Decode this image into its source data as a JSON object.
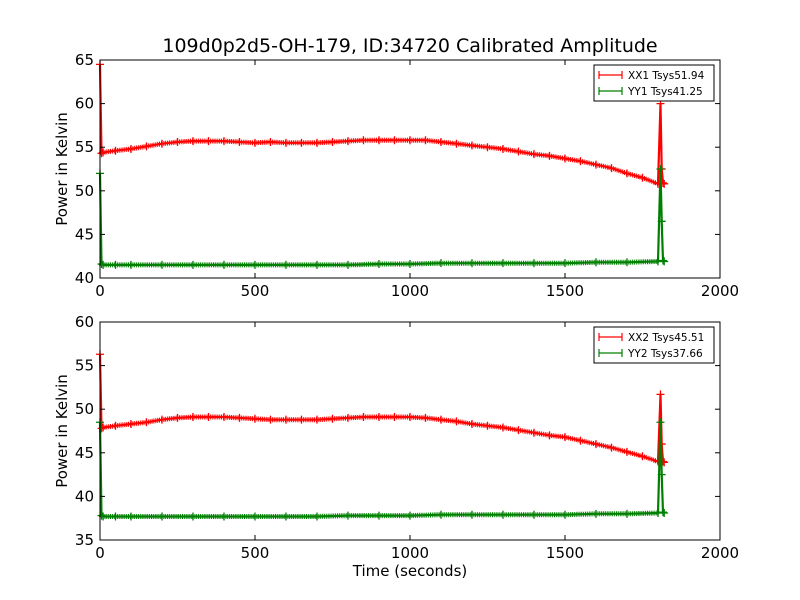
{
  "title": "109d0p2d5-OH-179, ID:34720 Calibrated Amplitude",
  "chart_data": [
    {
      "type": "line",
      "xlabel": "",
      "ylabel": "Power in Kelvin",
      "xlim": [
        0,
        2000
      ],
      "ylim": [
        40,
        65
      ],
      "xticks": [
        0,
        500,
        1000,
        1500,
        2000
      ],
      "yticks": [
        40,
        45,
        50,
        55,
        60,
        65
      ],
      "grid": false,
      "legend_position": "top-right",
      "series": [
        {
          "name": "XX1 Tsys51.94",
          "color": "#ff0000",
          "x": [
            0,
            5,
            10,
            50,
            100,
            150,
            200,
            250,
            300,
            350,
            400,
            450,
            500,
            550,
            600,
            650,
            700,
            750,
            800,
            850,
            900,
            950,
            1000,
            1050,
            1100,
            1150,
            1200,
            1250,
            1300,
            1350,
            1400,
            1450,
            1500,
            1550,
            1600,
            1650,
            1700,
            1750,
            1800,
            1808,
            1812,
            1816,
            1820
          ],
          "y": [
            64.5,
            54.3,
            54.4,
            54.6,
            54.8,
            55.1,
            55.4,
            55.6,
            55.7,
            55.7,
            55.7,
            55.6,
            55.5,
            55.6,
            55.5,
            55.5,
            55.5,
            55.6,
            55.7,
            55.8,
            55.8,
            55.8,
            55.8,
            55.8,
            55.6,
            55.4,
            55.2,
            55.0,
            54.8,
            54.5,
            54.2,
            54.0,
            53.7,
            53.4,
            53.0,
            52.6,
            52.0,
            51.5,
            50.8,
            60.0,
            52.5,
            50.9,
            50.8
          ]
        },
        {
          "name": "YY1 Tsys41.25",
          "color": "#008000",
          "x": [
            0,
            5,
            10,
            50,
            100,
            200,
            300,
            400,
            500,
            600,
            700,
            800,
            900,
            1000,
            1100,
            1200,
            1300,
            1400,
            1500,
            1600,
            1700,
            1800,
            1808,
            1812,
            1816,
            1820
          ],
          "y": [
            52.0,
            41.6,
            41.5,
            41.5,
            41.5,
            41.5,
            41.5,
            41.5,
            41.5,
            41.5,
            41.5,
            41.5,
            41.6,
            41.6,
            41.7,
            41.7,
            41.7,
            41.7,
            41.7,
            41.8,
            41.8,
            41.9,
            52.5,
            46.5,
            42.0,
            41.9
          ]
        }
      ]
    },
    {
      "type": "line",
      "xlabel": "Time (seconds)",
      "ylabel": "Power in Kelvin",
      "xlim": [
        0,
        2000
      ],
      "ylim": [
        35,
        60
      ],
      "xticks": [
        0,
        500,
        1000,
        1500,
        2000
      ],
      "yticks": [
        35,
        40,
        45,
        50,
        55,
        60
      ],
      "grid": false,
      "legend_position": "top-right",
      "series": [
        {
          "name": "XX2 Tsys45.51",
          "color": "#ff0000",
          "x": [
            0,
            5,
            10,
            50,
            100,
            150,
            200,
            250,
            300,
            350,
            400,
            450,
            500,
            550,
            600,
            650,
            700,
            750,
            800,
            850,
            900,
            950,
            1000,
            1050,
            1100,
            1150,
            1200,
            1250,
            1300,
            1350,
            1400,
            1450,
            1500,
            1550,
            1600,
            1650,
            1700,
            1750,
            1800,
            1808,
            1812,
            1816,
            1820
          ],
          "y": [
            56.3,
            47.8,
            47.9,
            48.1,
            48.3,
            48.5,
            48.8,
            49.0,
            49.1,
            49.1,
            49.1,
            49.0,
            48.9,
            48.8,
            48.8,
            48.8,
            48.8,
            48.9,
            49.0,
            49.1,
            49.1,
            49.1,
            49.1,
            49.0,
            48.8,
            48.6,
            48.3,
            48.1,
            47.9,
            47.6,
            47.3,
            47.0,
            46.8,
            46.4,
            46.0,
            45.6,
            45.1,
            44.6,
            44.0,
            51.7,
            46.0,
            44.0,
            43.9
          ]
        },
        {
          "name": "YY2 Tsys37.66",
          "color": "#008000",
          "x": [
            0,
            5,
            10,
            50,
            100,
            200,
            300,
            400,
            500,
            600,
            700,
            800,
            900,
            1000,
            1100,
            1200,
            1300,
            1400,
            1500,
            1600,
            1700,
            1800,
            1808,
            1812,
            1816,
            1820
          ],
          "y": [
            48.5,
            37.8,
            37.7,
            37.7,
            37.7,
            37.7,
            37.7,
            37.7,
            37.7,
            37.7,
            37.7,
            37.8,
            37.8,
            37.8,
            37.9,
            37.9,
            37.9,
            37.9,
            37.9,
            38.0,
            38.0,
            38.1,
            48.5,
            42.5,
            38.2,
            38.1
          ]
        }
      ]
    }
  ]
}
